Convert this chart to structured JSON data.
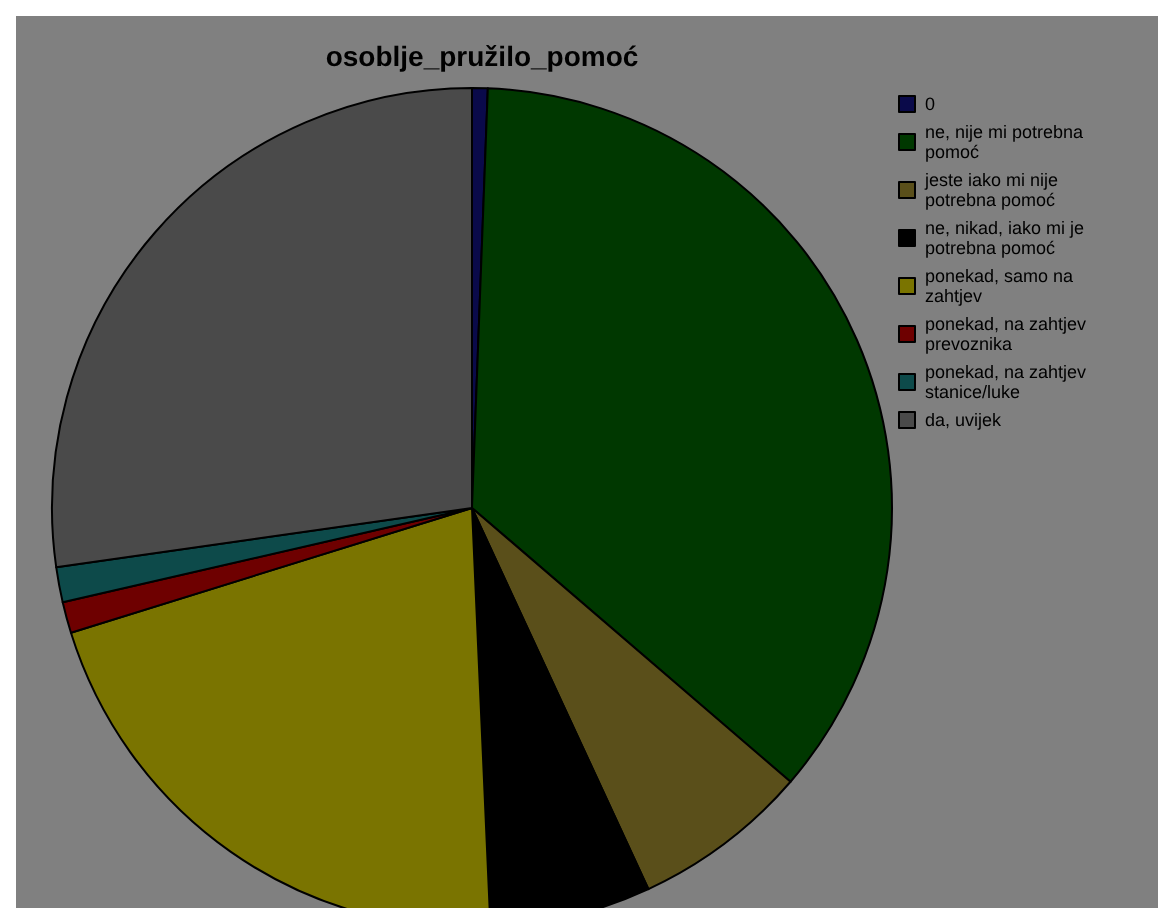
{
  "chart_data": {
    "type": "pie",
    "title": "osoblje_pružilo_pomoć",
    "categories": [
      "0",
      "ne, nije mi potrebna pomoć",
      "jeste iako mi nije potrebna pomoć",
      "ne, nikad, iako mi je potrebna pomoć",
      "ponekad, samo na zahtjev",
      "ponekad, na zahtjev prevoznika",
      "ponekad, na zahtjev stanice/luke",
      "da, uvijek"
    ],
    "values": [
      0.6,
      35.7,
      6.8,
      6.2,
      20.9,
      1.2,
      1.35,
      27.25
    ],
    "colors": [
      "#0a0a4a",
      "#003800",
      "#5a4f1a",
      "#000000",
      "#7a7400",
      "#6e0000",
      "#0d4a4a",
      "#4a4a4a"
    ],
    "legend": "top right"
  }
}
